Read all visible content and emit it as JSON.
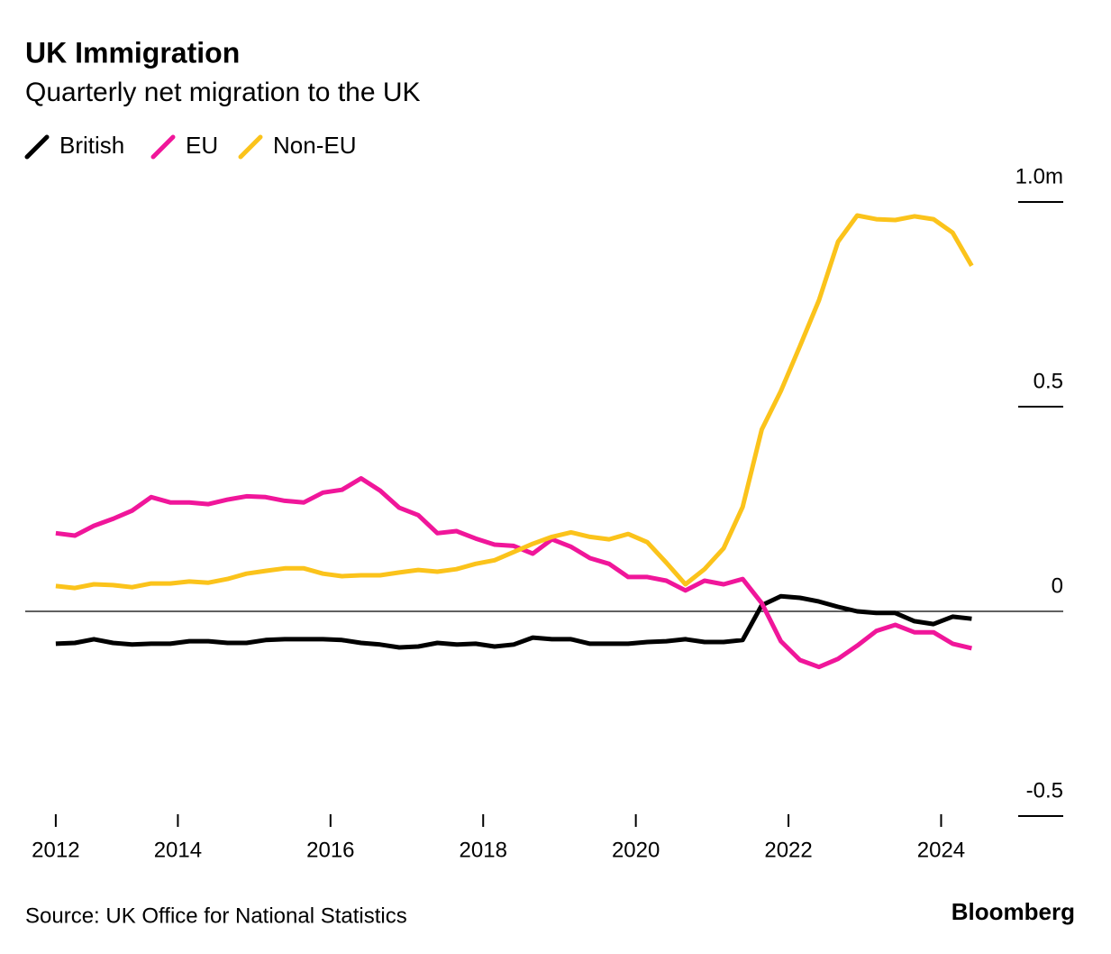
{
  "chart_data": {
    "type": "line",
    "title": "UK Immigration",
    "subtitle": "Quarterly net migration to the UK",
    "source": "Source: UK Office for National Statistics",
    "brand": "Bloomberg",
    "x": [
      2012.4,
      2012.65,
      2012.9,
      2013.15,
      2013.4,
      2013.65,
      2013.9,
      2014.15,
      2014.4,
      2014.65,
      2014.9,
      2015.15,
      2015.4,
      2015.65,
      2015.9,
      2016.15,
      2016.4,
      2016.65,
      2016.9,
      2017.15,
      2017.4,
      2017.65,
      2017.9,
      2018.15,
      2018.4,
      2018.65,
      2018.9,
      2019.15,
      2019.4,
      2019.65,
      2019.9,
      2020.15,
      2020.4,
      2020.65,
      2020.9,
      2021.15,
      2021.4,
      2021.65,
      2021.9,
      2022.15,
      2022.4,
      2022.65,
      2022.9,
      2023.15,
      2023.4,
      2023.65,
      2023.9,
      2024.15,
      2024.4
    ],
    "series": [
      {
        "name": "British",
        "color": "#000000",
        "values": [
          -0.079,
          -0.077,
          -0.068,
          -0.077,
          -0.081,
          -0.079,
          -0.079,
          -0.073,
          -0.073,
          -0.077,
          -0.077,
          -0.07,
          -0.068,
          -0.068,
          -0.068,
          -0.07,
          -0.077,
          -0.081,
          -0.088,
          -0.086,
          -0.077,
          -0.081,
          -0.079,
          -0.086,
          -0.081,
          -0.064,
          -0.068,
          -0.068,
          -0.079,
          -0.079,
          -0.079,
          -0.075,
          -0.073,
          -0.068,
          -0.075,
          -0.075,
          -0.07,
          0.015,
          0.037,
          0.033,
          0.024,
          0.011,
          0.0,
          -0.004,
          -0.004,
          -0.024,
          -0.031,
          -0.013,
          -0.018
        ]
      },
      {
        "name": "EU",
        "color": "#f0169a",
        "values": [
          0.191,
          0.185,
          0.209,
          0.226,
          0.246,
          0.279,
          0.266,
          0.266,
          0.262,
          0.273,
          0.281,
          0.279,
          0.27,
          0.266,
          0.29,
          0.297,
          0.325,
          0.295,
          0.253,
          0.235,
          0.191,
          0.196,
          0.178,
          0.163,
          0.16,
          0.141,
          0.176,
          0.158,
          0.13,
          0.116,
          0.084,
          0.084,
          0.075,
          0.051,
          0.075,
          0.066,
          0.079,
          0.02,
          -0.073,
          -0.119,
          -0.136,
          -0.116,
          -0.084,
          -0.048,
          -0.033,
          -0.051,
          -0.051,
          -0.079,
          -0.09
        ]
      },
      {
        "name": "Non-EU",
        "color": "#fbc31b",
        "values": [
          0.062,
          0.057,
          0.066,
          0.064,
          0.059,
          0.068,
          0.068,
          0.073,
          0.07,
          0.079,
          0.092,
          0.099,
          0.105,
          0.105,
          0.092,
          0.086,
          0.088,
          0.088,
          0.095,
          0.101,
          0.097,
          0.103,
          0.116,
          0.125,
          0.145,
          0.165,
          0.182,
          0.193,
          0.182,
          0.176,
          0.189,
          0.169,
          0.119,
          0.066,
          0.103,
          0.154,
          0.255,
          0.444,
          0.538,
          0.648,
          0.76,
          0.903,
          0.967,
          0.958,
          0.956,
          0.965,
          0.958,
          0.925,
          0.844
        ]
      }
    ],
    "xlim": [
      2012,
      2025.6
    ],
    "xticks": [
      {
        "value": 2012.4,
        "label": "2012"
      },
      2014,
      2016,
      2018,
      2020,
      2022,
      2024
    ],
    "ylim": [
      -0.5,
      1.0
    ],
    "yticks": [
      {
        "value": -0.5,
        "label": "-0.5"
      },
      0,
      0.5,
      {
        "value": 1,
        "label": "1.0m"
      }
    ],
    "legend": "top-left"
  }
}
